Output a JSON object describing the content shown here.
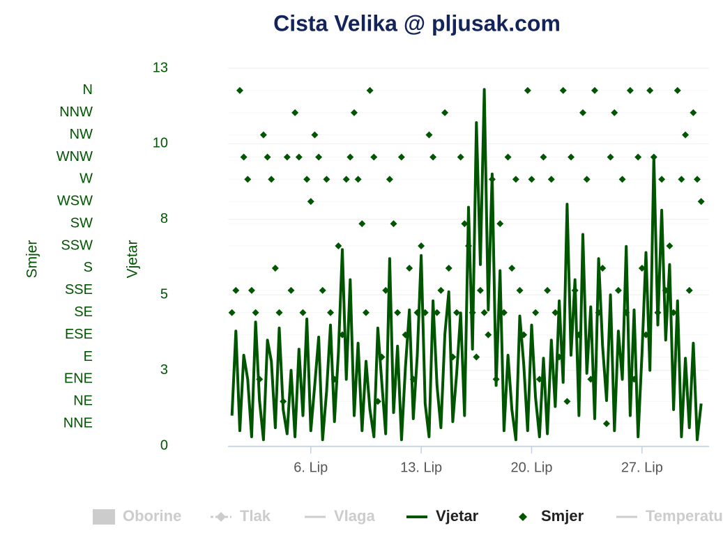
{
  "chart_data": {
    "type": "line-scatter",
    "title": "Cista Velika @ pljusak.com",
    "x_title": null,
    "y_title": "Vjetar",
    "y2_title": "Smjer",
    "x": [
      1,
      1.25,
      1.5,
      1.75,
      2,
      2.25,
      2.5,
      2.75,
      3,
      3.25,
      3.5,
      3.75,
      4,
      4.25,
      4.5,
      4.75,
      5,
      5.25,
      5.5,
      5.75,
      6,
      6.25,
      6.5,
      6.75,
      7,
      7.25,
      7.5,
      7.75,
      8,
      8.25,
      8.5,
      8.75,
      9,
      9.25,
      9.5,
      9.75,
      10,
      10.25,
      10.5,
      10.75,
      11,
      11.25,
      11.5,
      11.75,
      12,
      12.25,
      12.5,
      12.75,
      13,
      13.25,
      13.5,
      13.75,
      14,
      14.25,
      14.5,
      14.75,
      15,
      15.25,
      15.5,
      15.75,
      16,
      16.25,
      16.5,
      16.75,
      17,
      17.25,
      17.5,
      17.75,
      18,
      18.25,
      18.5,
      18.75,
      19,
      19.25,
      19.5,
      19.75,
      20,
      20.25,
      20.5,
      20.75,
      21,
      21.25,
      21.5,
      21.75,
      22,
      22.25,
      22.5,
      22.75,
      23,
      23.25,
      23.5,
      23.75,
      24,
      24.25,
      24.5,
      24.75,
      25,
      25.25,
      25.5,
      25.75,
      26,
      26.25,
      26.5,
      26.75,
      27,
      27.25,
      27.5,
      27.75,
      28,
      28.25,
      28.5,
      28.75,
      29,
      29.25,
      29.5,
      29.75,
      30,
      30.25,
      30.5,
      30.75
    ],
    "xlim": [
      0.75,
      31.25
    ],
    "xticks": [
      {
        "value": 6,
        "label": "6. Lip"
      },
      {
        "value": 13,
        "label": "13. Lip"
      },
      {
        "value": 20,
        "label": "20. Lip"
      },
      {
        "value": 27,
        "label": "27. Lip"
      }
    ],
    "ylim": [
      0,
      12.5
    ],
    "yticks": [
      0,
      {
        "value": 2.5,
        "label": "3"
      },
      5,
      {
        "value": 7.5,
        "label": "8"
      },
      10,
      {
        "value": 12.5,
        "label": "13"
      }
    ],
    "y2lim": [
      0,
      382.5
    ],
    "y2ticks": [
      {
        "value": 22.5,
        "label": "NNE"
      },
      {
        "value": 45,
        "label": "NE"
      },
      {
        "value": 67.5,
        "label": "ENE"
      },
      {
        "value": 90,
        "label": "E"
      },
      {
        "value": 112.5,
        "label": "ESE"
      },
      {
        "value": 135,
        "label": "SE"
      },
      {
        "value": 157.5,
        "label": "SSE"
      },
      {
        "value": 180,
        "label": "S"
      },
      {
        "value": 202.5,
        "label": "SSW"
      },
      {
        "value": 225,
        "label": "SW"
      },
      {
        "value": 247.5,
        "label": "WSW"
      },
      {
        "value": 270,
        "label": "W"
      },
      {
        "value": 292.5,
        "label": "WNW"
      },
      {
        "value": 315,
        "label": "NW"
      },
      {
        "value": 337.5,
        "label": "NNW"
      },
      {
        "value": 360,
        "label": "N"
      }
    ],
    "grid": true,
    "legend": "bottom",
    "series": [
      {
        "name": "Oborine",
        "kind": "column",
        "visible": false,
        "color": "#cccccc"
      },
      {
        "name": "Tlak",
        "kind": "line",
        "marker": "diamond",
        "dash": true,
        "visible": false,
        "color": "#cccccc"
      },
      {
        "name": "Vlaga",
        "kind": "line",
        "visible": false,
        "color": "#cccccc"
      },
      {
        "name": "Vjetar",
        "kind": "line",
        "visible": true,
        "color": "#005500",
        "values": [
          1.0,
          3.8,
          0.5,
          3.0,
          2.2,
          0.3,
          4.1,
          1.5,
          0.2,
          3.5,
          2.8,
          0.6,
          3.9,
          1.2,
          0.4,
          2.5,
          0.3,
          3.2,
          1.0,
          4.2,
          0.5,
          2.0,
          3.6,
          0.2,
          1.8,
          4.0,
          0.8,
          3.1,
          6.5,
          2.2,
          5.5,
          1.0,
          3.4,
          0.5,
          2.8,
          1.2,
          0.3,
          3.9,
          2.1,
          0.4,
          6.2,
          1.1,
          3.3,
          0.2,
          2.6,
          4.5,
          0.9,
          3.0,
          6.3,
          1.4,
          0.3,
          4.8,
          2.0,
          0.6,
          3.7,
          5.1,
          0.8,
          2.4,
          4.4,
          1.0,
          7.9,
          3.2,
          10.7,
          6.0,
          11.8,
          4.5,
          9.0,
          2.0,
          5.8,
          0.5,
          3.0,
          1.2,
          0.2,
          4.3,
          2.7,
          0.5,
          4.0,
          1.6,
          0.3,
          2.9,
          0.4,
          3.5,
          1.3,
          4.8,
          2.1,
          8.0,
          3.0,
          5.5,
          1.0,
          7.0,
          2.4,
          4.6,
          0.9,
          6.2,
          3.3,
          1.5,
          5.0,
          0.5,
          3.8,
          2.2,
          6.6,
          1.0,
          4.5,
          0.3,
          3.1,
          6.4,
          2.5,
          9.6,
          4.0,
          7.8,
          3.5,
          6.0,
          1.2,
          4.8,
          0.3,
          2.9,
          0.6,
          3.4,
          0.2,
          1.4
        ]
      },
      {
        "name": "Smjer",
        "kind": "scatter",
        "marker": "diamond",
        "axis": "y2",
        "visible": true,
        "color": "#005500",
        "values": [
          135,
          157.5,
          360,
          292.5,
          270,
          157.5,
          135,
          67.5,
          315,
          292.5,
          270,
          180,
          135,
          45,
          292.5,
          157.5,
          337.5,
          292.5,
          135,
          270,
          247.5,
          315,
          292.5,
          157.5,
          270,
          135,
          67.5,
          202.5,
          112.5,
          270,
          292.5,
          337.5,
          270,
          225,
          135,
          360,
          292.5,
          45,
          90,
          157.5,
          270,
          225,
          135,
          292.5,
          112.5,
          180,
          67.5,
          135,
          202.5,
          135,
          315,
          292.5,
          135,
          157.5,
          337.5,
          180,
          90,
          135,
          292.5,
          225,
          202.5,
          135,
          90,
          157.5,
          135,
          112.5,
          270,
          67.5,
          225,
          135,
          292.5,
          180,
          270,
          157.5,
          112.5,
          360,
          270,
          135,
          67.5,
          292.5,
          157.5,
          270,
          135,
          90,
          360,
          45,
          292.5,
          157.5,
          112.5,
          337.5,
          270,
          67.5,
          360,
          135,
          180,
          22.5,
          292.5,
          337.5,
          157.5,
          270,
          135,
          360,
          67.5,
          292.5,
          180,
          112.5,
          360,
          292.5,
          135,
          270,
          157.5,
          202.5,
          135,
          360,
          270,
          315,
          157.5,
          337.5,
          270,
          247.5
        ]
      },
      {
        "name": "Temperatura",
        "kind": "line",
        "visible": false,
        "color": "#cccccc"
      }
    ]
  }
}
